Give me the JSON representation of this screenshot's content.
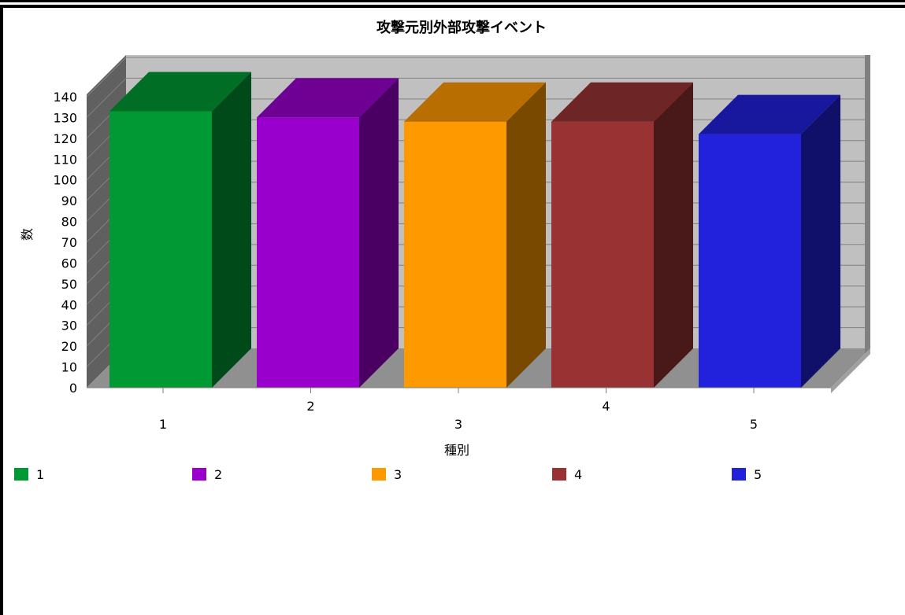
{
  "chart_data": {
    "type": "bar",
    "title": "攻撃元別外部攻撃イベント",
    "xlabel": "種別",
    "ylabel": "数",
    "categories": [
      "1",
      "2",
      "3",
      "4",
      "5"
    ],
    "values": [
      133,
      130,
      128,
      128,
      122
    ],
    "colors": [
      "#009933",
      "#9900CC",
      "#FF9900",
      "#993333",
      "#2222DD"
    ],
    "ylim": [
      0,
      140
    ],
    "yticks": [
      "0",
      "10",
      "20",
      "30",
      "40",
      "50",
      "60",
      "70",
      "80",
      "90",
      "100",
      "110",
      "120",
      "130",
      "140"
    ],
    "grid": true,
    "legend_position": "bottom",
    "style": "3d"
  },
  "legend": [
    {
      "label": "1",
      "color": "#009933"
    },
    {
      "label": "2",
      "color": "#9900CC"
    },
    {
      "label": "3",
      "color": "#FF9900"
    },
    {
      "label": "4",
      "color": "#993333"
    },
    {
      "label": "5",
      "color": "#2222DD"
    }
  ]
}
